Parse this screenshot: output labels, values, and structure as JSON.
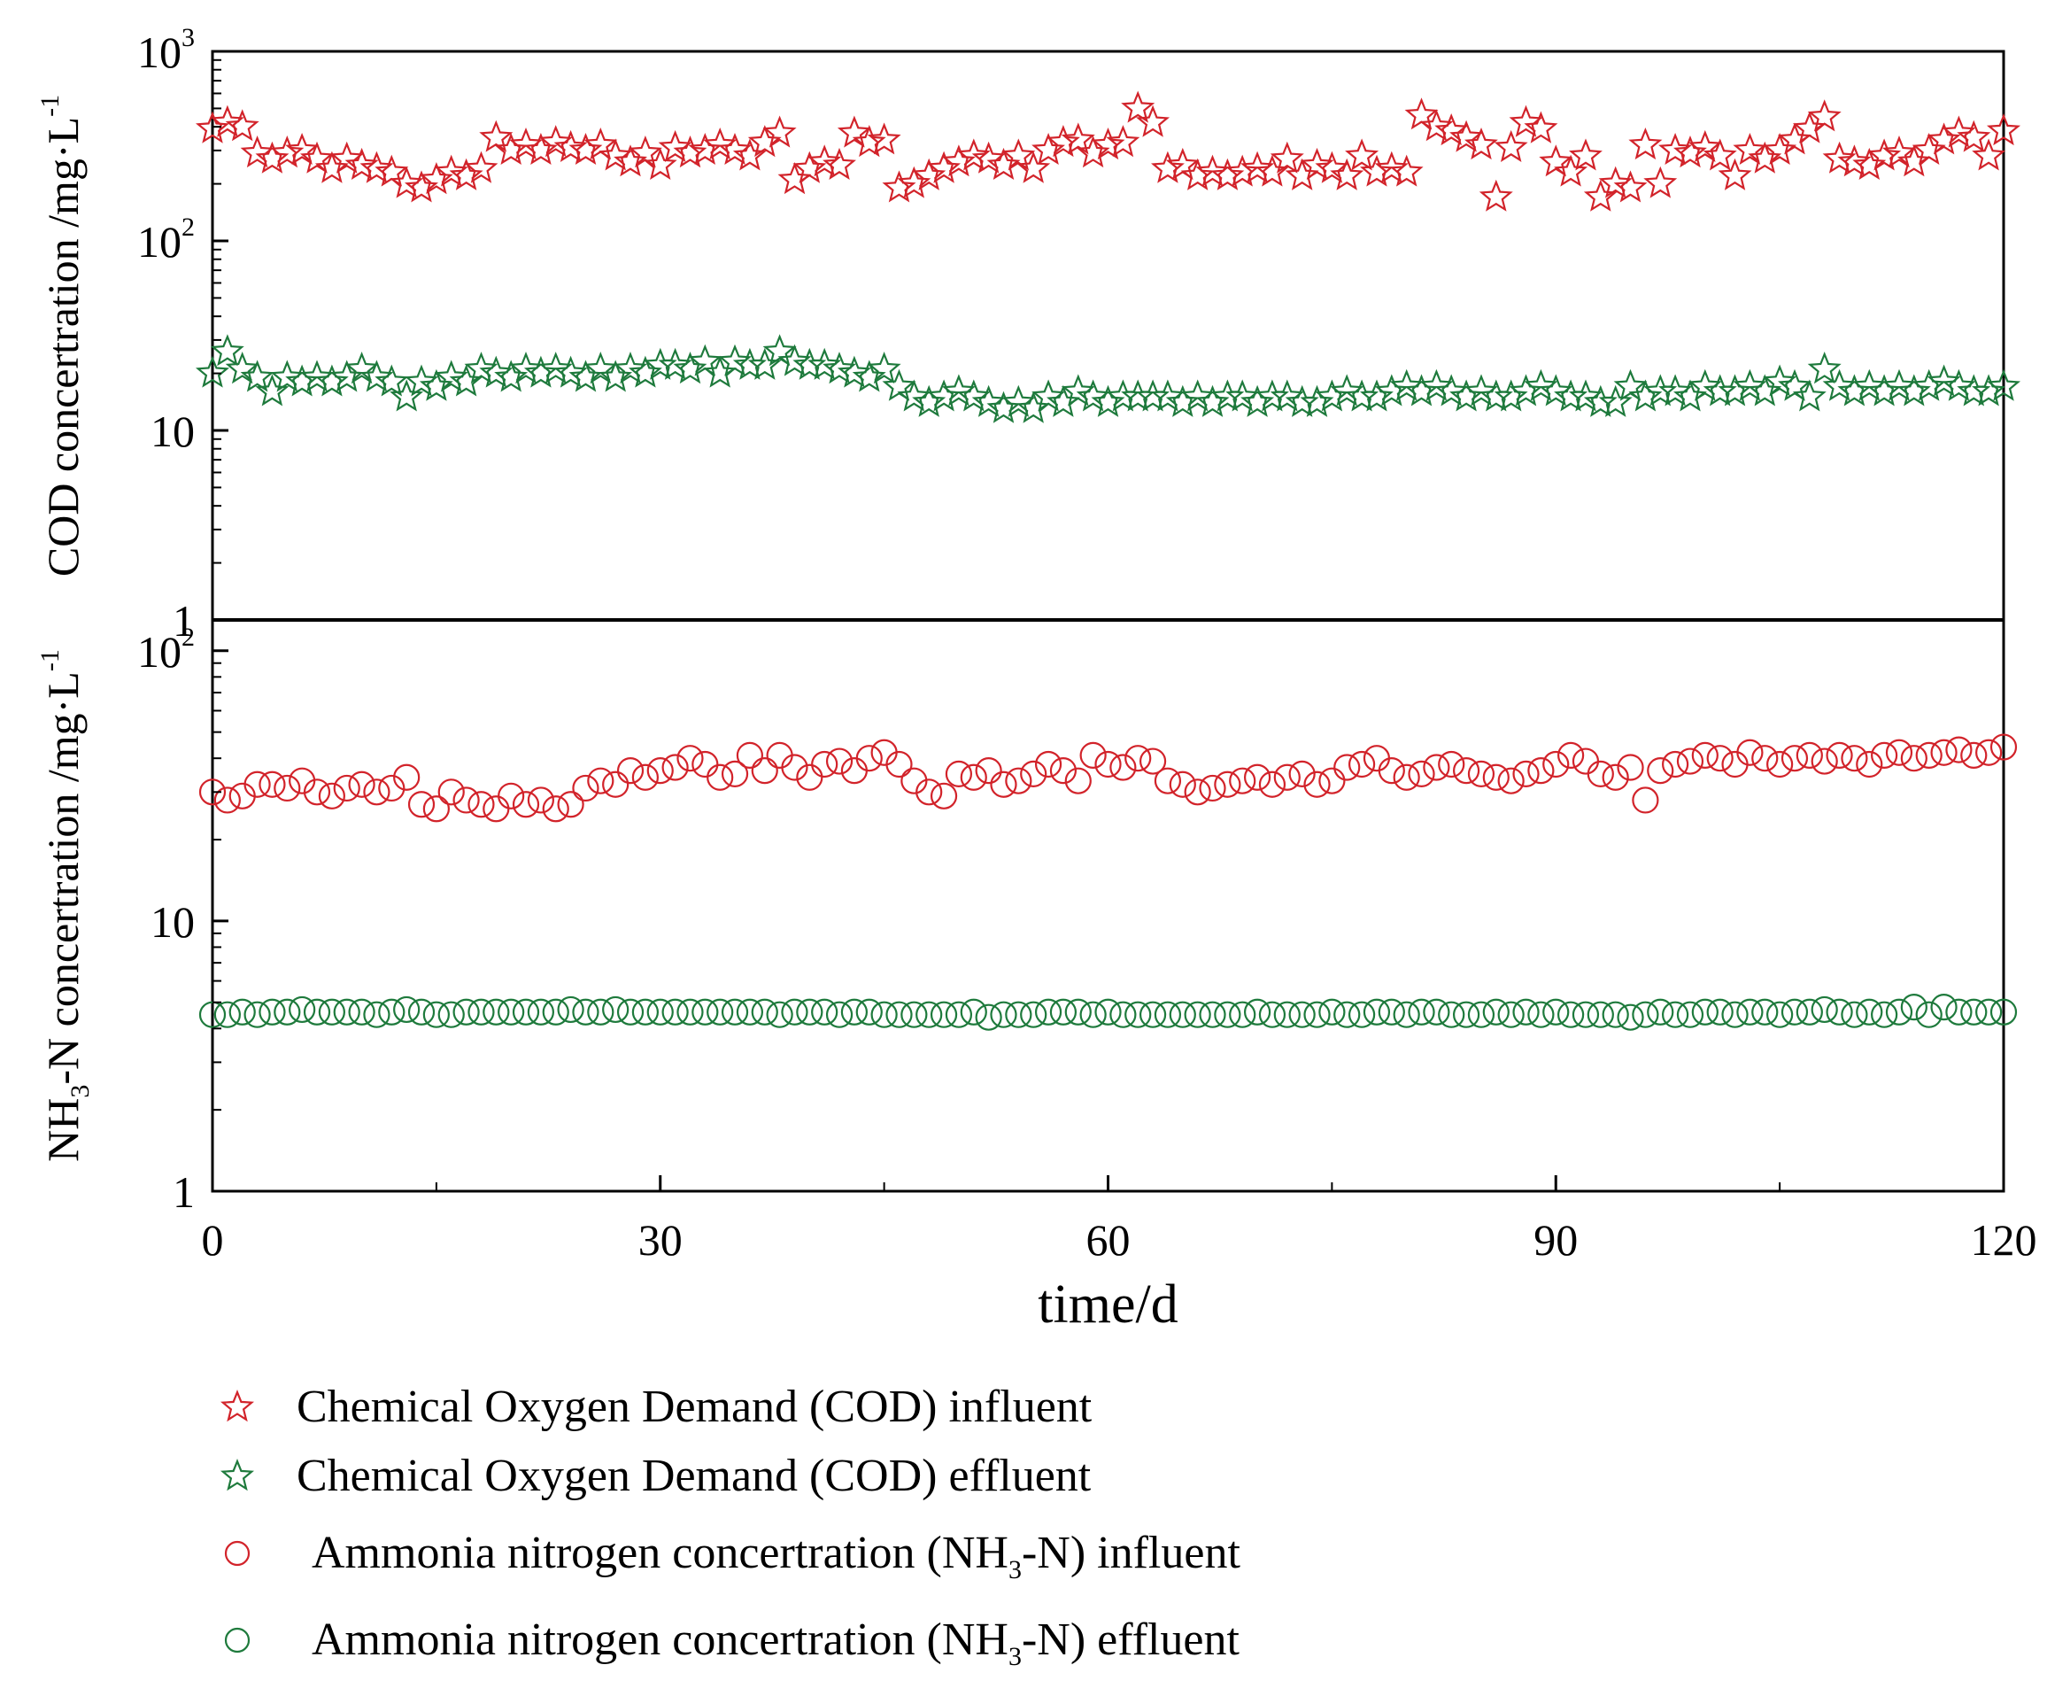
{
  "colors": {
    "influent": "#d2232a",
    "effluent": "#1e7a3c",
    "axis": "#000000"
  },
  "chart_data": [
    {
      "type": "scatter",
      "scale": "log",
      "ylabel_main": "COD concertration /mg·L",
      "ylabel_sup": "-1",
      "ylim": [
        1,
        1000
      ],
      "yticks": [
        {
          "base": "1",
          "exp": ""
        },
        {
          "base": "10",
          "exp": ""
        },
        {
          "base": "10",
          "exp": "2"
        },
        {
          "base": "10",
          "exp": "3"
        }
      ],
      "series": [
        {
          "name": "Chemical Oxygen Demand (COD) influent",
          "marker": "star",
          "color": "influent",
          "x": [
            0,
            1,
            2,
            3,
            4,
            5,
            6,
            7,
            8,
            9,
            10,
            11,
            12,
            13,
            14,
            15,
            16,
            17,
            18,
            19,
            20,
            21,
            22,
            23,
            24,
            25,
            26,
            27,
            28,
            29,
            30,
            31,
            32,
            33,
            34,
            35,
            36,
            37,
            38,
            39,
            40,
            41,
            42,
            43,
            44,
            45,
            46,
            47,
            48,
            49,
            50,
            51,
            52,
            53,
            54,
            55,
            56,
            57,
            58,
            59,
            60,
            61,
            62,
            63,
            64,
            65,
            66,
            67,
            68,
            69,
            70,
            71,
            72,
            73,
            74,
            75,
            76,
            77,
            78,
            79,
            80,
            81,
            82,
            83,
            84,
            85,
            86,
            87,
            88,
            89,
            90,
            91,
            92,
            93,
            94,
            95,
            96,
            97,
            98,
            99,
            100,
            101,
            102,
            103,
            104,
            105,
            106,
            107,
            108,
            109,
            110,
            111,
            112,
            113,
            114,
            115,
            116,
            117,
            118,
            119,
            120
          ],
          "y": [
            390,
            420,
            400,
            290,
            270,
            290,
            300,
            270,
            240,
            270,
            250,
            240,
            230,
            200,
            190,
            210,
            230,
            220,
            240,
            350,
            300,
            320,
            300,
            330,
            310,
            300,
            320,
            280,
            260,
            290,
            250,
            310,
            290,
            300,
            320,
            300,
            280,
            330,
            370,
            210,
            240,
            260,
            250,
            370,
            330,
            340,
            190,
            200,
            220,
            240,
            260,
            280,
            270,
            250,
            280,
            240,
            300,
            330,
            340,
            290,
            320,
            330,
            500,
            420,
            240,
            250,
            220,
            230,
            220,
            230,
            240,
            230,
            270,
            220,
            250,
            240,
            220,
            280,
            230,
            240,
            230,
            460,
            400,
            380,
            350,
            320,
            170,
            310,
            420,
            390,
            260,
            230,
            280,
            170,
            200,
            190,
            320,
            200,
            300,
            290,
            310,
            280,
            220,
            300,
            270,
            300,
            340,
            390,
            450,
            270,
            260,
            250,
            280,
            290,
            260,
            300,
            340,
            370,
            350,
            280,
            380
          ]
        },
        {
          "name": "Chemical Oxygen Demand (COD) effluent",
          "marker": "star",
          "color": "effluent",
          "x": [
            0,
            1,
            2,
            3,
            4,
            5,
            6,
            7,
            8,
            9,
            10,
            11,
            12,
            13,
            14,
            15,
            16,
            17,
            18,
            19,
            20,
            21,
            22,
            23,
            24,
            25,
            26,
            27,
            28,
            29,
            30,
            31,
            32,
            33,
            34,
            35,
            36,
            37,
            38,
            39,
            40,
            41,
            42,
            43,
            44,
            45,
            46,
            47,
            48,
            49,
            50,
            51,
            52,
            53,
            54,
            55,
            56,
            57,
            58,
            59,
            60,
            61,
            62,
            63,
            64,
            65,
            66,
            67,
            68,
            69,
            70,
            71,
            72,
            73,
            74,
            75,
            76,
            77,
            78,
            79,
            80,
            81,
            82,
            83,
            84,
            85,
            86,
            87,
            88,
            89,
            90,
            91,
            92,
            93,
            94,
            95,
            96,
            97,
            98,
            99,
            100,
            101,
            102,
            103,
            104,
            105,
            106,
            107,
            108,
            109,
            110,
            111,
            112,
            113,
            114,
            115,
            116,
            117,
            118,
            119,
            120
          ],
          "y": [
            20,
            26,
            21,
            19,
            16,
            19,
            18,
            19,
            18,
            19,
            21,
            19,
            18,
            15,
            18,
            17,
            19,
            18,
            21,
            20,
            19,
            21,
            20,
            21,
            20,
            19,
            21,
            19,
            21,
            20,
            22,
            22,
            21,
            23,
            20,
            23,
            22,
            22,
            26,
            23,
            22,
            22,
            21,
            20,
            19,
            21,
            17,
            15,
            14,
            15,
            16,
            15,
            14,
            13,
            14,
            13,
            15,
            14,
            16,
            15,
            14,
            15,
            15,
            15,
            15,
            14,
            15,
            14,
            15,
            15,
            14,
            15,
            15,
            14,
            14,
            15,
            16,
            15,
            15,
            16,
            17,
            16,
            17,
            16,
            15,
            16,
            15,
            15,
            16,
            17,
            16,
            15,
            15,
            14,
            14,
            17,
            15,
            16,
            16,
            15,
            17,
            16,
            16,
            17,
            16,
            18,
            17,
            15,
            21,
            17,
            16,
            17,
            16,
            17,
            16,
            17,
            18,
            17,
            16,
            16,
            17
          ]
        }
      ]
    },
    {
      "type": "scatter",
      "scale": "log",
      "ylabel_pre": "NH",
      "ylabel_sub": "3",
      "ylabel_main": "-N concertration /mg·L",
      "ylabel_sup": "-1",
      "ylim": [
        1,
        130
      ],
      "yticks": [
        {
          "base": "1",
          "exp": ""
        },
        {
          "base": "10",
          "exp": ""
        },
        {
          "base": "10",
          "exp": "2"
        }
      ],
      "series": [
        {
          "name": "Ammonia nitrogen concertration (NH3-N) influent",
          "marker": "circle",
          "color": "influent",
          "x": [
            0,
            1,
            2,
            3,
            4,
            5,
            6,
            7,
            8,
            9,
            10,
            11,
            12,
            13,
            14,
            15,
            16,
            17,
            18,
            19,
            20,
            21,
            22,
            23,
            24,
            25,
            26,
            27,
            28,
            29,
            30,
            31,
            32,
            33,
            34,
            35,
            36,
            37,
            38,
            39,
            40,
            41,
            42,
            43,
            44,
            45,
            46,
            47,
            48,
            49,
            50,
            51,
            52,
            53,
            54,
            55,
            56,
            57,
            58,
            59,
            60,
            61,
            62,
            63,
            64,
            65,
            66,
            67,
            68,
            69,
            70,
            71,
            72,
            73,
            74,
            75,
            76,
            77,
            78,
            79,
            80,
            81,
            82,
            83,
            84,
            85,
            86,
            87,
            88,
            89,
            90,
            91,
            92,
            93,
            94,
            95,
            96,
            97,
            98,
            99,
            100,
            101,
            102,
            103,
            104,
            105,
            106,
            107,
            108,
            109,
            110,
            111,
            112,
            113,
            114,
            115,
            116,
            117,
            118,
            119,
            120
          ],
          "y": [
            30,
            28,
            29,
            32,
            32,
            31,
            33,
            30,
            29,
            31,
            32,
            30,
            31,
            34,
            27,
            26,
            30,
            28,
            27,
            26,
            29,
            27,
            28,
            26,
            27,
            31,
            33,
            32,
            36,
            34,
            36,
            37,
            40,
            38,
            34,
            35,
            41,
            36,
            41,
            37,
            34,
            38,
            39,
            36,
            40,
            42,
            38,
            33,
            30,
            29,
            35,
            34,
            36,
            32,
            33,
            35,
            38,
            36,
            33,
            41,
            38,
            37,
            40,
            39,
            33,
            32,
            30,
            31,
            32,
            33,
            34,
            32,
            34,
            35,
            32,
            33,
            37,
            38,
            40,
            36,
            34,
            35,
            37,
            38,
            36,
            35,
            34,
            33,
            35,
            36,
            38,
            41,
            39,
            35,
            34,
            37,
            28,
            36,
            38,
            39,
            41,
            40,
            38,
            42,
            40,
            38,
            40,
            41,
            39,
            41,
            40,
            38,
            41,
            42,
            40,
            41,
            42,
            43,
            41,
            42,
            44
          ]
        },
        {
          "name": "Ammonia nitrogen concertration (NH3-N) effluent",
          "marker": "circle",
          "color": "effluent",
          "x": [
            0,
            1,
            2,
            3,
            4,
            5,
            6,
            7,
            8,
            9,
            10,
            11,
            12,
            13,
            14,
            15,
            16,
            17,
            18,
            19,
            20,
            21,
            22,
            23,
            24,
            25,
            26,
            27,
            28,
            29,
            30,
            31,
            32,
            33,
            34,
            35,
            36,
            37,
            38,
            39,
            40,
            41,
            42,
            43,
            44,
            45,
            46,
            47,
            48,
            49,
            50,
            51,
            52,
            53,
            54,
            55,
            56,
            57,
            58,
            59,
            60,
            61,
            62,
            63,
            64,
            65,
            66,
            67,
            68,
            69,
            70,
            71,
            72,
            73,
            74,
            75,
            76,
            77,
            78,
            79,
            80,
            81,
            82,
            83,
            84,
            85,
            86,
            87,
            88,
            89,
            90,
            91,
            92,
            93,
            94,
            95,
            96,
            97,
            98,
            99,
            100,
            101,
            102,
            103,
            104,
            105,
            106,
            107,
            108,
            109,
            110,
            111,
            112,
            113,
            114,
            115,
            116,
            117,
            118,
            119,
            120
          ],
          "y": [
            4.5,
            4.5,
            4.6,
            4.5,
            4.6,
            4.6,
            4.7,
            4.6,
            4.6,
            4.6,
            4.6,
            4.5,
            4.6,
            4.7,
            4.6,
            4.5,
            4.5,
            4.6,
            4.6,
            4.6,
            4.6,
            4.6,
            4.6,
            4.6,
            4.7,
            4.6,
            4.6,
            4.7,
            4.6,
            4.6,
            4.6,
            4.6,
            4.6,
            4.6,
            4.6,
            4.6,
            4.6,
            4.6,
            4.5,
            4.6,
            4.6,
            4.6,
            4.5,
            4.6,
            4.6,
            4.5,
            4.5,
            4.5,
            4.5,
            4.5,
            4.5,
            4.6,
            4.4,
            4.5,
            4.5,
            4.5,
            4.6,
            4.6,
            4.6,
            4.5,
            4.6,
            4.5,
            4.5,
            4.5,
            4.5,
            4.5,
            4.5,
            4.5,
            4.5,
            4.5,
            4.6,
            4.5,
            4.5,
            4.5,
            4.5,
            4.6,
            4.5,
            4.5,
            4.6,
            4.6,
            4.5,
            4.6,
            4.6,
            4.5,
            4.5,
            4.5,
            4.6,
            4.5,
            4.6,
            4.5,
            4.6,
            4.5,
            4.5,
            4.5,
            4.5,
            4.4,
            4.5,
            4.6,
            4.5,
            4.5,
            4.6,
            4.6,
            4.5,
            4.6,
            4.6,
            4.5,
            4.6,
            4.6,
            4.7,
            4.6,
            4.5,
            4.6,
            4.5,
            4.6,
            4.8,
            4.5,
            4.8,
            4.6,
            4.6,
            4.6,
            4.6
          ]
        }
      ]
    }
  ],
  "x_axis": {
    "label": "time/d",
    "xlim": [
      0,
      120
    ],
    "ticks": [
      "0",
      "30",
      "60",
      "90",
      "120"
    ]
  },
  "legend": [
    {
      "text": "Chemical Oxygen Demand (COD) influent",
      "marker": "star",
      "color": "influent"
    },
    {
      "text": "Chemical Oxygen Demand (COD) effluent",
      "marker": "star",
      "color": "effluent"
    },
    {
      "pre": "Ammonia nitrogen concertration (NH",
      "sub": "3",
      "post": "-N) influent",
      "marker": "circle",
      "color": "influent"
    },
    {
      "pre": "Ammonia nitrogen concertration (NH",
      "sub": "3",
      "post": "-N) effluent",
      "marker": "circle",
      "color": "effluent"
    }
  ]
}
